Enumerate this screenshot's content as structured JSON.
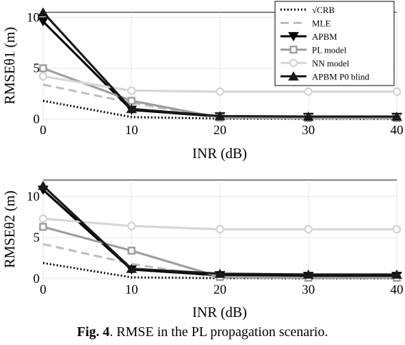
{
  "caption": {
    "label": "Fig. 4",
    "text": ". RMSE in the PL propagation scenario."
  },
  "legend": {
    "placement": "top-right",
    "entries": [
      {
        "key": "crb",
        "label": "√CRB"
      },
      {
        "key": "mle",
        "label": "MLE"
      },
      {
        "key": "apbm",
        "label": "APBM"
      },
      {
        "key": "pl",
        "label": "PL model"
      },
      {
        "key": "nn",
        "label": "NN model"
      },
      {
        "key": "blind",
        "label": "APBM P0 blind"
      }
    ]
  },
  "styles": {
    "crb": {
      "color": "#000000",
      "dash": "dotted",
      "marker": "none"
    },
    "mle": {
      "color": "#bdbdbd",
      "dash": "dashed",
      "marker": "none"
    },
    "apbm": {
      "color": "#000000",
      "dash": "solid",
      "marker": "triangle-down"
    },
    "pl": {
      "color": "#9e9e9e",
      "dash": "solid",
      "marker": "square"
    },
    "nn": {
      "color": "#d6d6d6",
      "dash": "solid",
      "marker": "circle"
    },
    "blind": {
      "color": "#1a1a1a",
      "dash": "solid",
      "marker": "triangle-up"
    }
  },
  "chart_data": [
    {
      "type": "line",
      "ylabel": "RMSEθ1 (m)",
      "xlabel": "INR (dB)",
      "x": [
        0,
        10,
        20,
        30,
        40
      ],
      "xlim": [
        0,
        40
      ],
      "ylim": [
        0,
        10.5
      ],
      "xticks": [
        "0",
        "10",
        "20",
        "30",
        "40"
      ],
      "yticks": [
        "0",
        "5",
        "10"
      ],
      "grid": true,
      "series": [
        {
          "key": "crb",
          "name": "√CRB",
          "values": [
            1.8,
            0.2,
            0.05,
            0.02,
            0.02
          ]
        },
        {
          "key": "mle",
          "name": "MLE",
          "values": [
            3.4,
            1.6,
            0.1,
            0.05,
            0.05
          ]
        },
        {
          "key": "apbm",
          "name": "APBM",
          "values": [
            9.6,
            0.9,
            0.25,
            0.2,
            0.2
          ]
        },
        {
          "key": "pl",
          "name": "PL model",
          "values": [
            5.0,
            1.8,
            0.15,
            0.1,
            0.1
          ]
        },
        {
          "key": "nn",
          "name": "NN model",
          "values": [
            4.2,
            2.8,
            2.7,
            2.7,
            2.7
          ]
        },
        {
          "key": "blind",
          "name": "APBM P0 blind",
          "values": [
            10.5,
            1.0,
            0.3,
            0.25,
            0.25
          ]
        }
      ]
    },
    {
      "type": "line",
      "ylabel": "RMSEθ2 (m)",
      "xlabel": "INR (dB)",
      "x": [
        0,
        10,
        20,
        30,
        40
      ],
      "xlim": [
        0,
        40
      ],
      "ylim": [
        0,
        12
      ],
      "xticks": [
        "0",
        "10",
        "20",
        "30",
        "40"
      ],
      "yticks": [
        "0",
        "5",
        "10"
      ],
      "grid": true,
      "series": [
        {
          "key": "crb",
          "name": "√CRB",
          "values": [
            1.9,
            0.15,
            0.05,
            0.02,
            0.02
          ]
        },
        {
          "key": "mle",
          "name": "MLE",
          "values": [
            4.2,
            1.8,
            0.1,
            0.05,
            0.05
          ]
        },
        {
          "key": "apbm",
          "name": "APBM",
          "values": [
            10.8,
            1.1,
            0.4,
            0.3,
            0.3
          ]
        },
        {
          "key": "pl",
          "name": "PL model",
          "values": [
            6.3,
            3.4,
            0.2,
            0.1,
            0.1
          ]
        },
        {
          "key": "nn",
          "name": "NN model",
          "values": [
            7.3,
            6.4,
            6.0,
            6.0,
            6.0
          ]
        },
        {
          "key": "blind",
          "name": "APBM P0 blind",
          "values": [
            11.3,
            1.2,
            0.6,
            0.5,
            0.5
          ]
        }
      ]
    }
  ]
}
